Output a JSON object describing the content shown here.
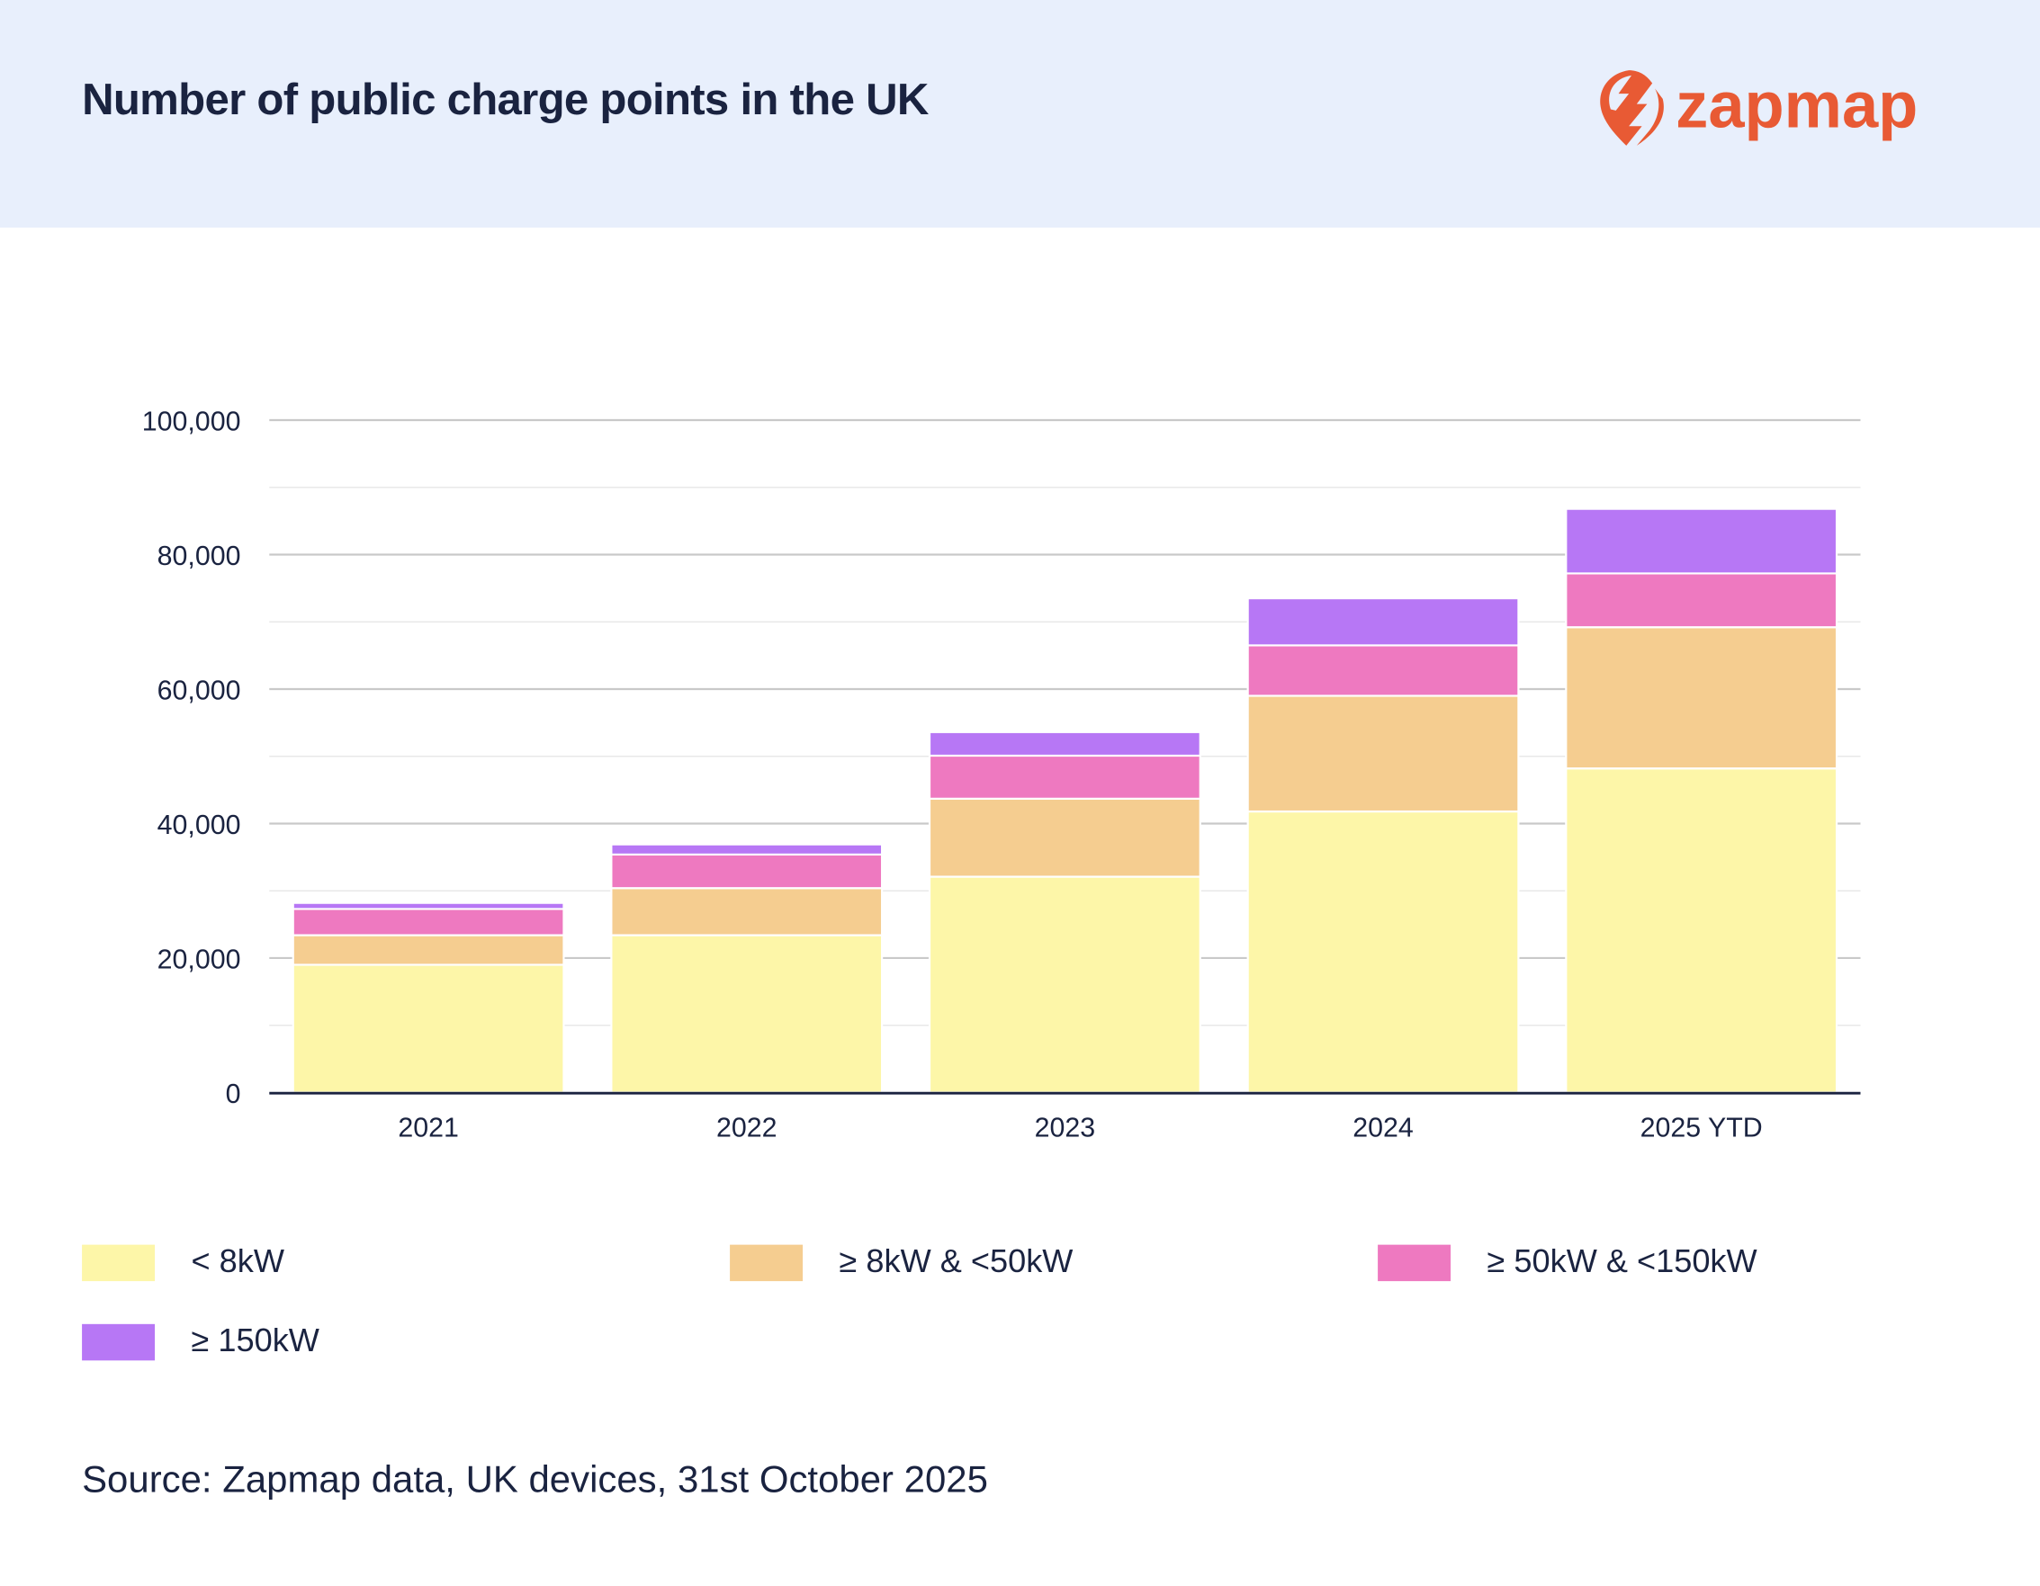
{
  "header": {
    "title": "Number of public charge points in the UK",
    "logo_text": "zapmap",
    "logo_color": "#e85a34",
    "background": "#e8effc"
  },
  "chart_data": {
    "type": "bar",
    "stacked": true,
    "title": "Number of public charge points in the UK",
    "xlabel": "",
    "ylabel": "",
    "ylim": [
      0,
      100000
    ],
    "yticks": [
      0,
      20000,
      40000,
      60000,
      80000,
      100000
    ],
    "ytick_labels": [
      "0",
      "20,000",
      "40,000",
      "60,000",
      "80,000",
      "100,000"
    ],
    "grid": true,
    "legend_placement": "bottom",
    "categories": [
      "2021",
      "2022",
      "2023",
      "2024",
      "2025 YTD"
    ],
    "series": [
      {
        "name": "< 8kW",
        "color": "#fdf6a8",
        "values": [
          19000,
          23400,
          32100,
          41800,
          48200
        ]
      },
      {
        "name": "≥ 8kW & <50kW",
        "color": "#f5cd90",
        "values": [
          4400,
          7000,
          11600,
          17200,
          21000
        ]
      },
      {
        "name": "≥ 50kW & <150kW",
        "color": "#ee79c0",
        "values": [
          3900,
          5000,
          6400,
          7500,
          8000
        ]
      },
      {
        "name": "≥ 150kW",
        "color": "#b777f5",
        "values": [
          900,
          1500,
          3500,
          7000,
          9600
        ]
      }
    ]
  },
  "footer": {
    "source": "Source: Zapmap data, UK devices, 31st October 2025"
  }
}
